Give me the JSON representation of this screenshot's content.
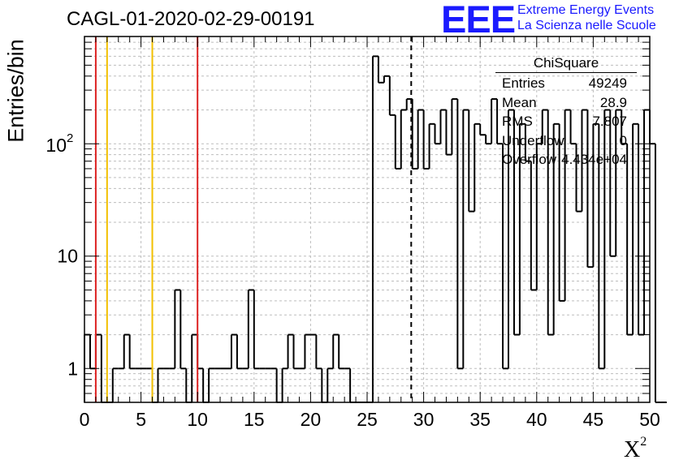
{
  "chart_data": {
    "type": "histogram",
    "title": "CAGL-01-2020-02-29-00191",
    "xlabel": "X",
    "xlabel_sup": "2",
    "ylabel": "Entries/bin",
    "xlim": [
      0,
      50
    ],
    "ylim": [
      0.5,
      900
    ],
    "yscale": "log",
    "grid": true,
    "bin_width": 0.5,
    "x_ticks": [
      0,
      5,
      10,
      15,
      20,
      25,
      30,
      35,
      40,
      45,
      50
    ],
    "y_ticks": [
      1,
      10,
      100
    ],
    "y_tick_labels": [
      "1",
      "10",
      "10",
      "2"
    ],
    "counts": [
      2,
      1,
      2,
      0,
      0,
      1,
      1,
      2,
      1,
      1,
      1,
      1,
      0,
      1,
      1,
      1,
      5,
      1,
      0,
      2,
      1,
      0,
      1,
      1,
      1,
      1,
      2,
      1,
      1,
      5,
      1,
      1,
      1,
      1,
      0,
      1,
      2,
      1,
      1,
      2,
      2,
      1,
      0,
      1,
      2,
      1,
      1,
      0,
      0,
      0,
      0,
      600,
      350,
      400,
      180,
      60,
      200,
      250,
      60,
      200,
      60,
      150,
      100,
      200,
      80,
      250,
      1,
      200,
      25,
      150,
      120,
      100,
      250,
      100,
      1,
      200,
      2,
      150,
      70,
      5,
      100,
      200,
      2,
      150,
      4,
      200,
      100,
      25,
      200,
      8,
      150,
      1,
      200,
      10,
      200,
      100,
      2,
      150,
      2,
      200,
      100,
      0,
      0
    ],
    "lines": [
      {
        "x": 1.0,
        "color": "#dd2222"
      },
      {
        "x": 2.0,
        "color": "#f2c000"
      },
      {
        "x": 6.0,
        "color": "#f2c000"
      },
      {
        "x": 10.0,
        "color": "#dd2222"
      },
      {
        "x": 28.9,
        "color": "#000000",
        "dashed": true
      }
    ],
    "legend": "top-right",
    "stats": {
      "title": "ChiSquare",
      "rows": [
        {
          "label": "Entries",
          "value": "49249"
        },
        {
          "label": "Mean",
          "value": "28.9"
        },
        {
          "label": "RMS",
          "value": "7.807"
        },
        {
          "label": "Underflow",
          "value": "0"
        },
        {
          "label": "Overflow",
          "value": "4.434e+04"
        }
      ]
    }
  },
  "logo": {
    "mark": "EEE",
    "line1": "Extreme Energy Events",
    "line2": "La Scienza nelle Scuole"
  }
}
